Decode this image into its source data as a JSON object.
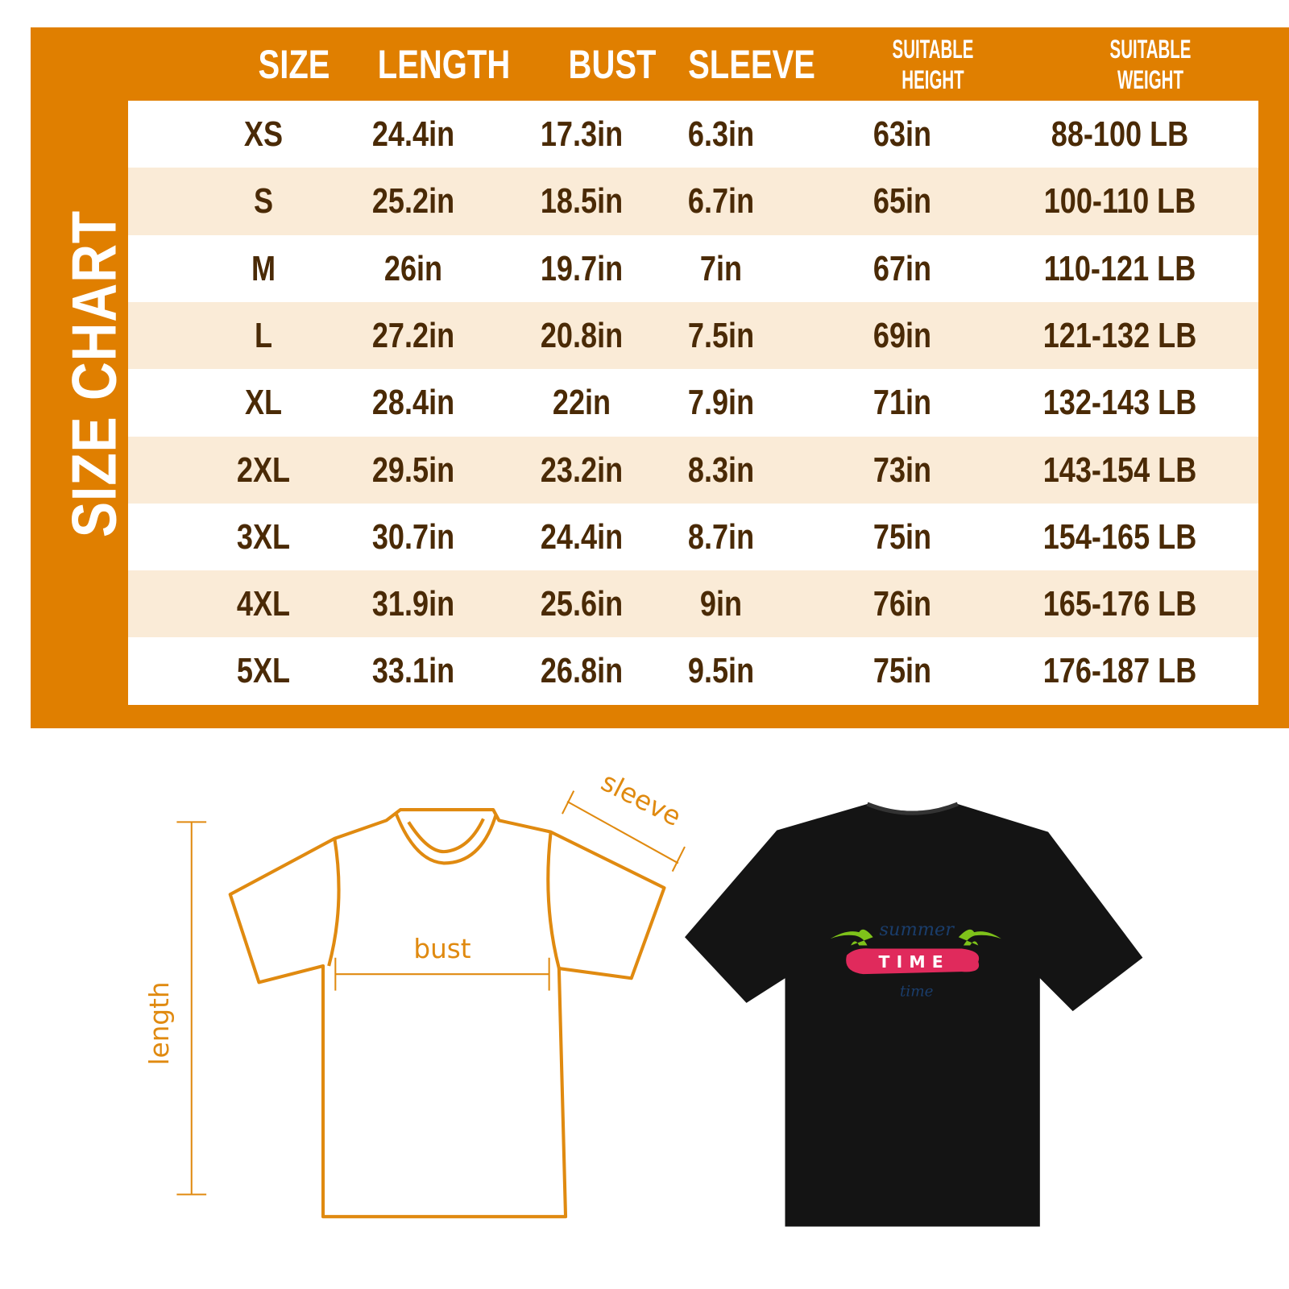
{
  "side_title": "SIZE CHART",
  "colors": {
    "accent": "#e07f00",
    "row_alt": "#faebd7",
    "text": "#4a2a06"
  },
  "headers": [
    "SIZE",
    "LENGTH",
    "BUST",
    "SLEEVE",
    "SUITABLE HEIGHT",
    "SUITABLE WEIGHT"
  ],
  "rows": [
    [
      "XS",
      "24.4in",
      "17.3in",
      "6.3in",
      "63in",
      "88-100 LB"
    ],
    [
      "S",
      "25.2in",
      "18.5in",
      "6.7in",
      "65in",
      "100-110 LB"
    ],
    [
      "M",
      "26in",
      "19.7in",
      "7in",
      "67in",
      "110-121 LB"
    ],
    [
      "L",
      "27.2in",
      "20.8in",
      "7.5in",
      "69in",
      "121-132 LB"
    ],
    [
      "XL",
      "28.4in",
      "22in",
      "7.9in",
      "71in",
      "132-143 LB"
    ],
    [
      "2XL",
      "29.5in",
      "23.2in",
      "8.3in",
      "73in",
      "143-154 LB"
    ],
    [
      "3XL",
      "30.7in",
      "24.4in",
      "8.7in",
      "75in",
      "154-165 LB"
    ],
    [
      "4XL",
      "31.9in",
      "25.6in",
      "9in",
      "76in",
      "165-176 LB"
    ],
    [
      "5XL",
      "33.1in",
      "26.8in",
      "9.5in",
      "75in",
      "176-187 LB"
    ]
  ],
  "diagram": {
    "length": "length",
    "bust": "bust",
    "sleeve": "sleeve"
  },
  "shirt_graphic": {
    "top": "summer",
    "main": "TIME",
    "bottom": "time"
  }
}
